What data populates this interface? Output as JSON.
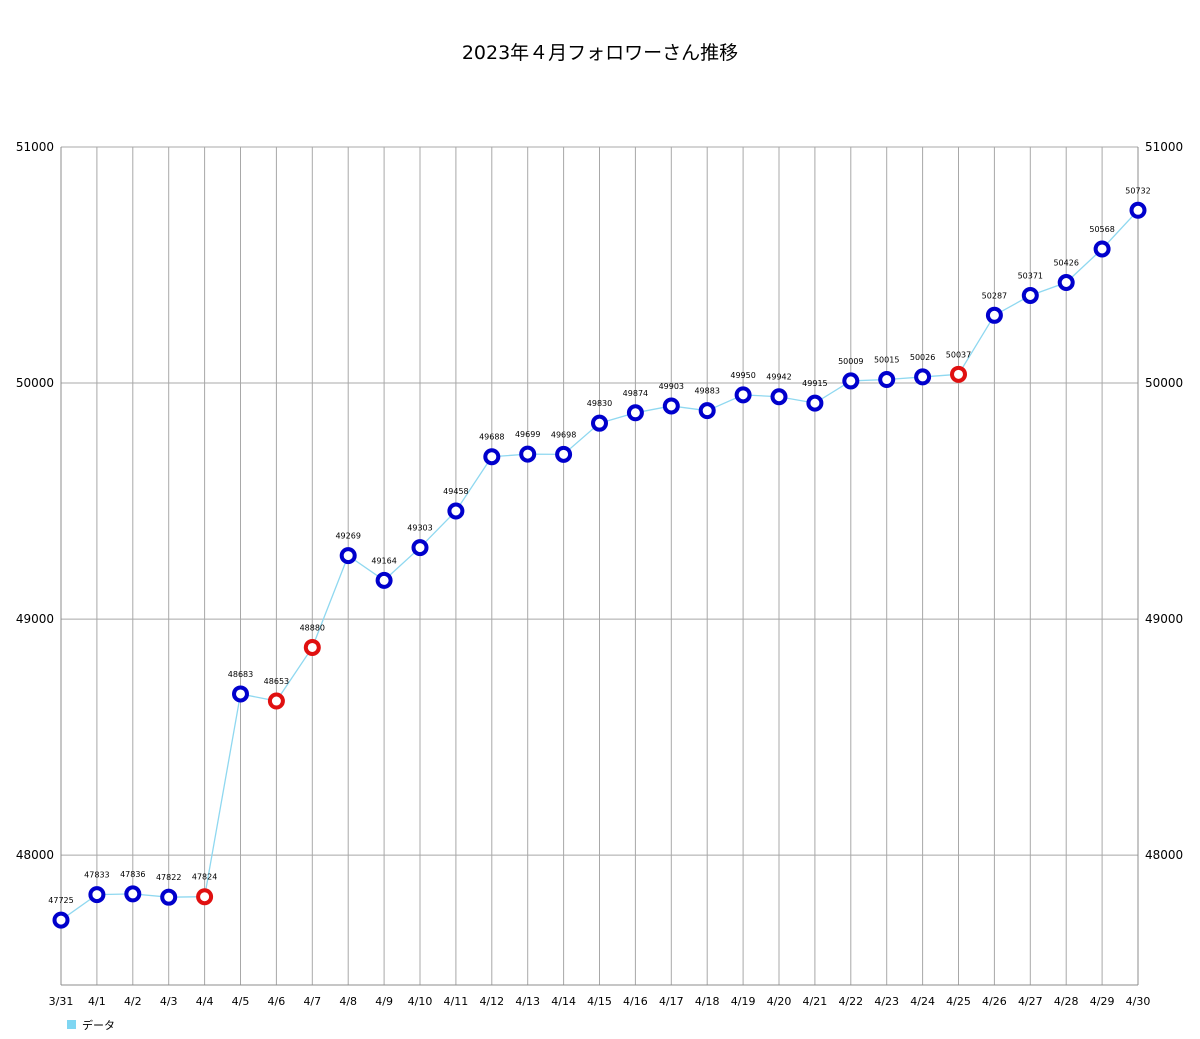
{
  "chart_data": {
    "type": "line",
    "title": "2023年４月フォロワーさん推移",
    "xlabel": "",
    "ylabel": "",
    "categories": [
      "3/31",
      "4/1",
      "4/2",
      "4/3",
      "4/4",
      "4/5",
      "4/6",
      "4/7",
      "4/8",
      "4/9",
      "4/10",
      "4/11",
      "4/12",
      "4/13",
      "4/14",
      "4/15",
      "4/16",
      "4/17",
      "4/18",
      "4/19",
      "4/20",
      "4/21",
      "4/22",
      "4/23",
      "4/24",
      "4/25",
      "4/26",
      "4/27",
      "4/28",
      "4/29",
      "4/30"
    ],
    "series": [
      {
        "name": "データ",
        "values": [
          47725,
          47833,
          47836,
          47822,
          47824,
          48683,
          48653,
          48880,
          49269,
          49164,
          49303,
          49458,
          49688,
          49699,
          49698,
          49830,
          49874,
          49903,
          49883,
          49950,
          49942,
          49915,
          50009,
          50015,
          50026,
          50037,
          50287,
          50371,
          50426,
          50568,
          50732
        ],
        "highlight_indices": [
          4,
          6,
          7,
          25
        ]
      }
    ],
    "ylim": [
      47450,
      51000
    ],
    "yticks": [
      48000,
      49000,
      50000,
      51000
    ],
    "ytick_labels": [
      "48000",
      "49000",
      "50000",
      "51000"
    ],
    "grid": true,
    "secondary_y_axis": true,
    "legend": {
      "position": "bottom-left",
      "label": "データ"
    },
    "colors": {
      "line": "#8fd8f0",
      "marker": "#0000cc",
      "marker_highlight": "#e01010",
      "grid": "#a8a8a8",
      "legend_swatch": "#7fd6f2"
    }
  }
}
